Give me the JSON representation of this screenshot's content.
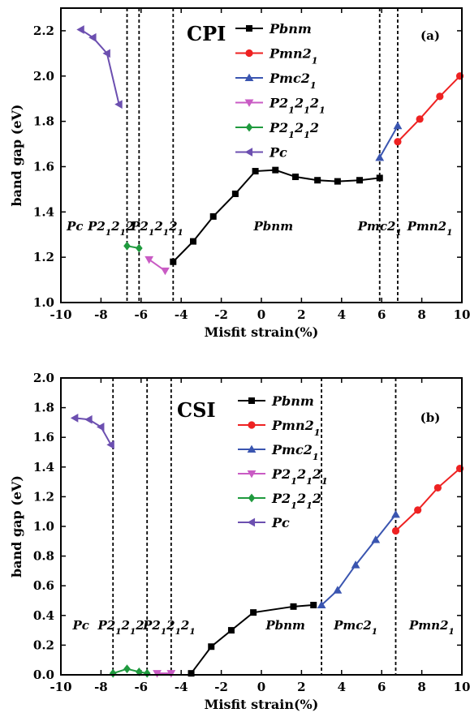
{
  "chart_data": [
    {
      "type": "line",
      "panel_label": "(a)",
      "compound": "CPI",
      "xlabel": "Misfit strain(%)",
      "ylabel": "band gap (eV)",
      "xlim": [
        -10,
        10
      ],
      "ylim": [
        1.0,
        2.3
      ],
      "xticks": [
        -10,
        -8,
        -6,
        -4,
        -2,
        0,
        2,
        4,
        6,
        8,
        10
      ],
      "yticks": [
        1.0,
        1.2,
        1.4,
        1.6,
        1.8,
        2.0,
        2.2
      ],
      "ytick_labels": [
        "1.0",
        "1.2",
        "1.4",
        "1.6",
        "1.8",
        "2.0",
        "2.2"
      ],
      "legend_position": "top-center",
      "boundaries": [
        -6.7,
        -6.1,
        -4.4,
        5.9,
        6.8
      ],
      "regions": [
        {
          "label": "Pc",
          "x": -9.3
        },
        {
          "label": "P2₁2₁2",
          "x": -7.5
        },
        {
          "label": "P2₁2₁2₁",
          "x": -5.2
        },
        {
          "label": "Pbnm",
          "x": 0.6
        },
        {
          "label": "Pmc2₁",
          "x": 5.9
        },
        {
          "label": "Pmn2₁",
          "x": 8.4
        }
      ],
      "series": [
        {
          "name": "Pbnm",
          "color": "#000000",
          "marker": "square",
          "x": [
            -4.4,
            -3.4,
            -2.4,
            -1.3,
            -0.3,
            0.7,
            1.7,
            2.8,
            3.8,
            4.9,
            5.9
          ],
          "y": [
            1.18,
            1.27,
            1.38,
            1.48,
            1.58,
            1.585,
            1.555,
            1.54,
            1.535,
            1.54,
            1.55
          ]
        },
        {
          "name": "Pmn2₁",
          "color": "#ee2222",
          "marker": "circle",
          "x": [
            6.8,
            7.9,
            8.9,
            9.9
          ],
          "y": [
            1.71,
            1.81,
            1.91,
            2.0
          ]
        },
        {
          "name": "Pmc2₁",
          "color": "#3a55b0",
          "marker": "triangle-up",
          "x": [
            5.9,
            6.8
          ],
          "y": [
            1.64,
            1.78
          ]
        },
        {
          "name": "P2₁2₁2₁",
          "color": "#c95bc4",
          "marker": "triangle-down",
          "x": [
            -5.6,
            -4.8
          ],
          "y": [
            1.19,
            1.14
          ]
        },
        {
          "name": "P2₁2₁2",
          "color": "#1f9a3e",
          "marker": "diamond",
          "x": [
            -6.7,
            -6.1
          ],
          "y": [
            1.25,
            1.24
          ]
        },
        {
          "name": "Pc",
          "color": "#6c4fb0",
          "marker": "triangle-left",
          "x": [
            -9.0,
            -8.4,
            -7.7,
            -7.1
          ],
          "y": [
            2.205,
            2.17,
            2.1,
            1.875
          ]
        }
      ]
    },
    {
      "type": "line",
      "panel_label": "(b)",
      "compound": "CSI",
      "xlabel": "Misfit strain(%)",
      "ylabel": "band gap (eV)",
      "xlim": [
        -10,
        10
      ],
      "ylim": [
        0.0,
        2.0
      ],
      "xticks": [
        -10,
        -8,
        -6,
        -4,
        -2,
        0,
        2,
        4,
        6,
        8,
        10
      ],
      "yticks": [
        0.0,
        0.2,
        0.4,
        0.6,
        0.8,
        1.0,
        1.2,
        1.4,
        1.6,
        1.8,
        2.0
      ],
      "ytick_labels": [
        "0.0",
        "0.2",
        "0.4",
        "0.6",
        "0.8",
        "1.0",
        "1.2",
        "1.4",
        "1.6",
        "1.8",
        "2.0"
      ],
      "legend_position": "top-center",
      "boundaries": [
        -7.4,
        -5.7,
        -4.5,
        3.0,
        6.7
      ],
      "regions": [
        {
          "label": "Pc",
          "x": -9.0
        },
        {
          "label": "P2₁2₁2",
          "x": -7.0
        },
        {
          "label": "P2₁2₁2₁",
          "x": -4.6
        },
        {
          "label": "Pbnm",
          "x": 1.2
        },
        {
          "label": "Pmc2₁",
          "x": 4.7
        },
        {
          "label": "Pmn2₁",
          "x": 8.5
        }
      ],
      "series": [
        {
          "name": "Pbnm",
          "color": "#000000",
          "marker": "square",
          "x": [
            -3.5,
            -2.5,
            -1.5,
            -0.4,
            1.6,
            2.6
          ],
          "y": [
            0.01,
            0.19,
            0.3,
            0.42,
            0.46,
            0.47
          ]
        },
        {
          "name": "Pmn2₁",
          "color": "#ee2222",
          "marker": "circle",
          "x": [
            6.7,
            7.8,
            8.8,
            9.9
          ],
          "y": [
            0.97,
            1.11,
            1.26,
            1.39
          ]
        },
        {
          "name": "Pmc2₁",
          "color": "#3a55b0",
          "marker": "triangle-up",
          "x": [
            3.0,
            3.8,
            4.7,
            5.7,
            6.7
          ],
          "y": [
            0.47,
            0.57,
            0.74,
            0.91,
            1.08
          ]
        },
        {
          "name": "P2₁2₁2₁",
          "color": "#c95bc4",
          "marker": "triangle-down",
          "x": [
            -5.2,
            -4.5
          ],
          "y": [
            0.01,
            0.01
          ]
        },
        {
          "name": "P2₁2₁2",
          "color": "#1f9a3e",
          "marker": "diamond",
          "x": [
            -7.4,
            -6.7,
            -6.1,
            -5.7
          ],
          "y": [
            0.01,
            0.04,
            0.02,
            0.01
          ]
        },
        {
          "name": "Pc",
          "color": "#6c4fb0",
          "marker": "triangle-left",
          "x": [
            -9.3,
            -8.6,
            -8.0,
            -7.5
          ],
          "y": [
            1.73,
            1.72,
            1.67,
            1.55
          ]
        }
      ]
    }
  ]
}
